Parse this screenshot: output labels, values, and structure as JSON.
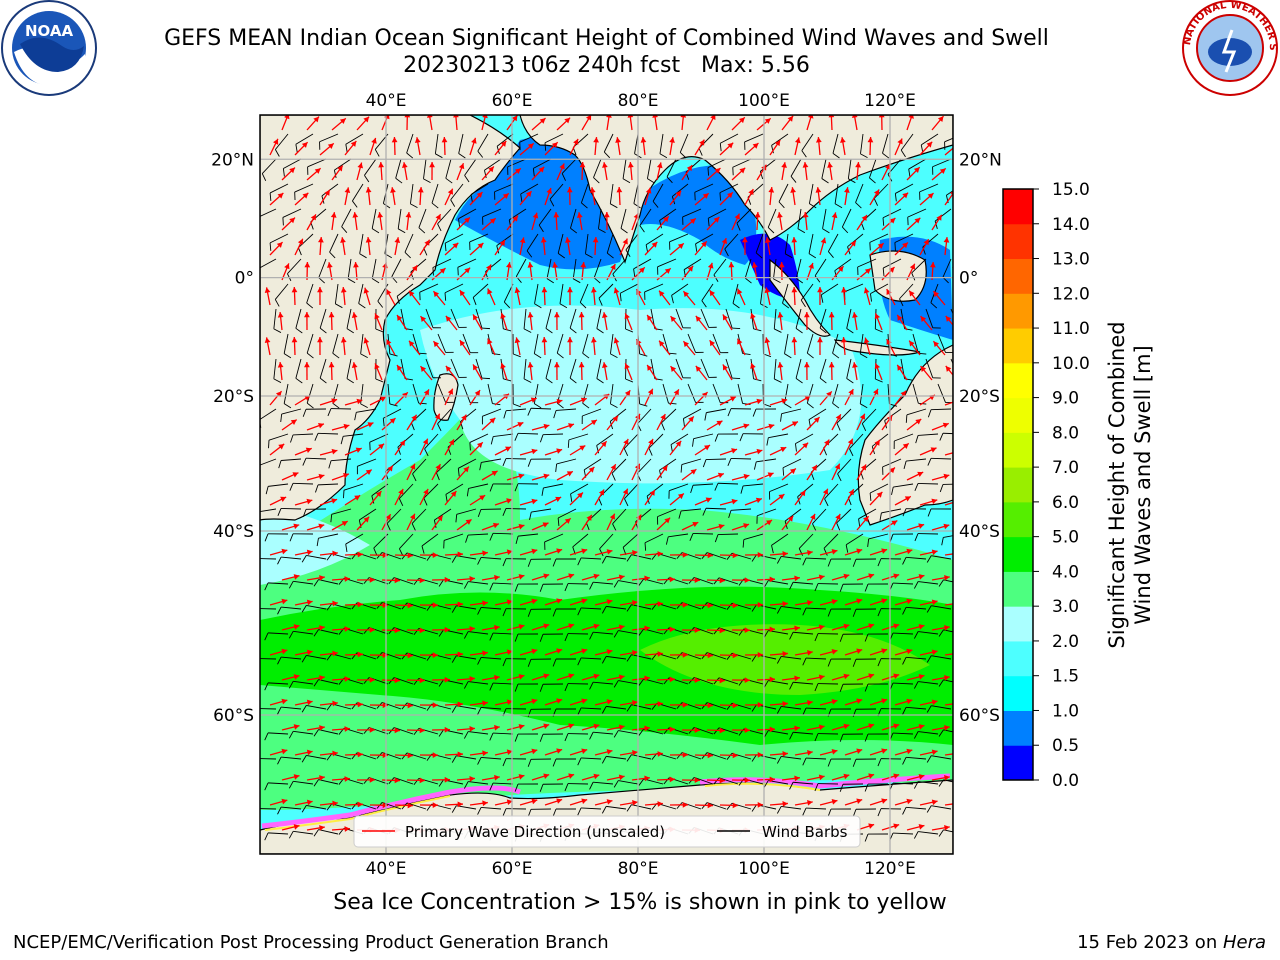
{
  "title": {
    "line1": "GEFS MEAN Indian Ocean Significant Height of Combined Wind Waves and Swell",
    "line2": "20230213 t06z 240h fcst   Max: 5.56"
  },
  "logos": {
    "left": {
      "name": "noaa-logo",
      "text": "NOAA"
    },
    "right": {
      "name": "nws-logo",
      "text": "NATIONAL WEATHER SERVICE"
    }
  },
  "map": {
    "lon_range": [
      20,
      130
    ],
    "lat_range": [
      -70,
      27
    ],
    "lon_ticks": [
      "40°E",
      "60°E",
      "80°E",
      "100°E",
      "120°E"
    ],
    "lat_ticks": [
      "20°N",
      "0°",
      "20°S",
      "40°S",
      "60°S"
    ],
    "grid": true,
    "colors": {
      "land": "#efecdc",
      "grid": "#b0b0b0",
      "wave_arrow": "#ff0000",
      "wind_barb": "#000000",
      "sea_ice": "#ff66ff"
    }
  },
  "legend": {
    "placement": "bottom-center",
    "items": [
      {
        "label": "Primary Wave Direction (unscaled)",
        "color": "#ff0000"
      },
      {
        "label": "Wind Barbs",
        "color": "#000000"
      }
    ]
  },
  "colorbar": {
    "label_line1": "Significant Height of Combined",
    "label_line2": "Wind Waves and Swell [m]",
    "ticks": [
      "0.0",
      "0.5",
      "1.0",
      "1.5",
      "2.0",
      "3.0",
      "4.0",
      "5.0",
      "6.0",
      "7.0",
      "8.0",
      "9.0",
      "10.0",
      "11.0",
      "12.0",
      "13.0",
      "14.0",
      "15.0"
    ],
    "colors": [
      "#0000ff",
      "#0080ff",
      "#00ffff",
      "#4dffff",
      "#aaffff",
      "#4dff80",
      "#00ee00",
      "#55ee00",
      "#99ee00",
      "#ccff00",
      "#eeff00",
      "#ffff00",
      "#ffcc00",
      "#ff9900",
      "#ff6600",
      "#ff3300",
      "#ff0000"
    ]
  },
  "subcaption": "Sea Ice Concentration > 15% is shown in pink to yellow",
  "footer": {
    "left": "NCEP/EMC/Verification Post Processing Product Generation Branch",
    "right_prefix": "15 Feb 2023 on ",
    "right_italic": "Hera"
  }
}
